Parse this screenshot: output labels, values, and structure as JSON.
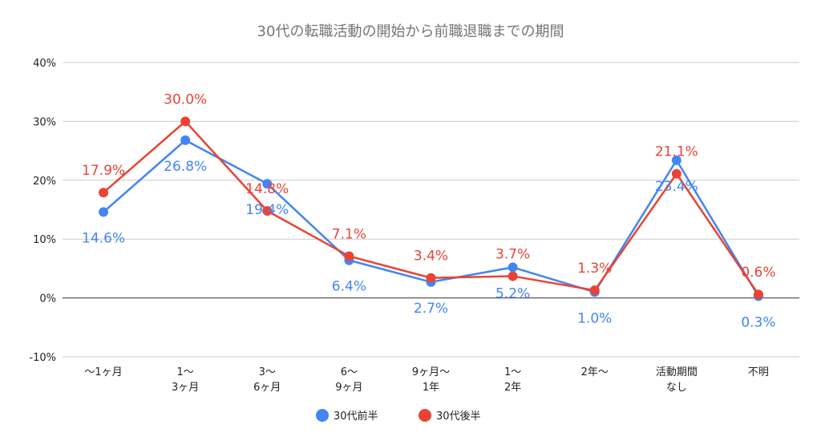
{
  "chart_data": {
    "type": "line",
    "title": "30代の転職活動の開始から前職退職までの期間",
    "xlabel": "",
    "ylabel": "",
    "ylim": [
      -10,
      40
    ],
    "yticks": [
      -10,
      0,
      10,
      20,
      30,
      40
    ],
    "ytick_labels": [
      "-10%",
      "0%",
      "10%",
      "20%",
      "30%",
      "40%"
    ],
    "grid": true,
    "legend_position": "bottom",
    "categories": [
      [
        "〜1ヶ月"
      ],
      [
        "1〜",
        "3ヶ月"
      ],
      [
        "3〜",
        "6ヶ月"
      ],
      [
        "6〜",
        "9ヶ月"
      ],
      [
        "9ヶ月〜",
        "1年"
      ],
      [
        "1〜",
        "2年"
      ],
      [
        "2年〜"
      ],
      [
        "活動期間",
        "なし"
      ],
      [
        "不明"
      ]
    ],
    "series": [
      {
        "name": "30代前半",
        "color": "#4285F4",
        "values": [
          14.6,
          26.8,
          19.4,
          6.4,
          2.7,
          5.2,
          1.0,
          23.4,
          0.3
        ],
        "labels": [
          "14.6%",
          "26.8%",
          "19.4%",
          "6.4%",
          "2.7%",
          "5.2%",
          "1.0%",
          "23.4%",
          "0.3%"
        ],
        "label_side": "below"
      },
      {
        "name": "30代後半",
        "color": "#EA4335",
        "values": [
          17.9,
          30.0,
          14.8,
          7.1,
          3.4,
          3.7,
          1.3,
          21.1,
          0.6
        ],
        "labels": [
          "17.9%",
          "30.0%",
          "14.8%",
          "7.1%",
          "3.4%",
          "3.7%",
          "1.3%",
          "21.1%",
          "0.6%"
        ],
        "label_side": "above"
      }
    ]
  }
}
